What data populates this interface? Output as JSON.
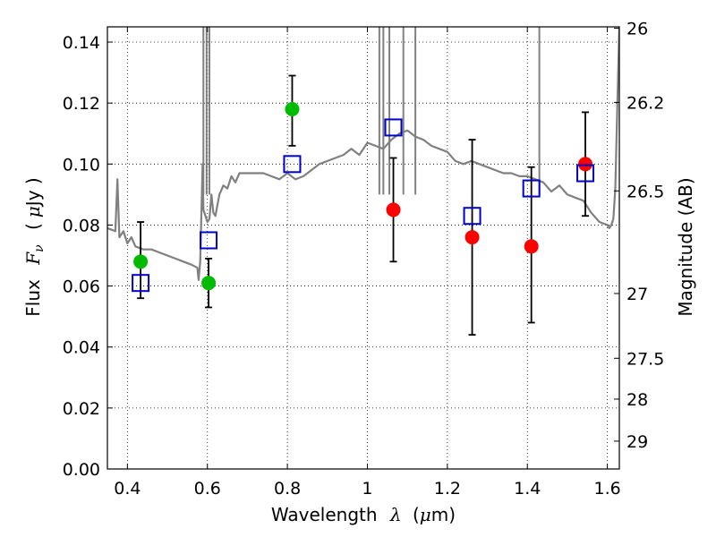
{
  "chart_data": {
    "type": "scatter",
    "xlabel_main": "Wavelength",
    "xlabel_symbol": "λ",
    "xlabel_unit_open": "(",
    "xlabel_unit_mu": "μ",
    "xlabel_unit_rest": "m)",
    "ylabel_main": "Flux",
    "ylabel_symbol": "F",
    "ylabel_sub": "ν",
    "ylabel_unit_open": "(",
    "ylabel_unit_mu": "μ",
    "ylabel_unit_rest": "Jy )",
    "y2label": "Magnitude (AB)",
    "xlim": [
      0.35,
      1.63
    ],
    "ylim": [
      0.0,
      0.145
    ],
    "xticks": [
      0.4,
      0.6,
      0.8,
      1.0,
      1.2,
      1.4,
      1.6
    ],
    "xtick_labels": [
      "0.4",
      "0.6",
      "0.8",
      "1",
      "1.2",
      "1.4",
      "1.6"
    ],
    "yticks": [
      0.0,
      0.02,
      0.04,
      0.06,
      0.08,
      0.1,
      0.12,
      0.14
    ],
    "ytick_labels": [
      "0.00",
      "0.02",
      "0.04",
      "0.06",
      "0.08",
      "0.10",
      "0.12",
      "0.14"
    ],
    "mag_ticks": [
      26,
      26.2,
      26.5,
      27,
      27.5,
      28,
      29
    ],
    "mag_tick_labels": [
      "26",
      "26.2",
      "26.5",
      "27",
      "27.5",
      "28",
      "29"
    ],
    "grid": true,
    "colors": {
      "model": "#808080",
      "detected": "#00bb00",
      "measured": "#ff0000",
      "model_band": "#0000cc",
      "errorbar": "#000000"
    },
    "series": [
      {
        "kind": "line",
        "color": "#808080",
        "x": [
          0.35,
          0.37,
          0.375,
          0.38,
          0.39,
          0.4,
          0.41,
          0.42,
          0.44,
          0.46,
          0.48,
          0.5,
          0.52,
          0.54,
          0.56,
          0.575,
          0.578,
          0.582,
          0.588,
          0.59,
          0.6,
          0.605,
          0.61,
          0.615,
          0.62,
          0.63,
          0.64,
          0.65,
          0.66,
          0.67,
          0.68,
          0.7,
          0.72,
          0.74,
          0.76,
          0.78,
          0.8,
          0.82,
          0.84,
          0.86,
          0.88,
          0.9,
          0.92,
          0.94,
          0.96,
          0.98,
          1.0,
          1.02,
          1.04,
          1.06,
          1.08,
          1.1,
          1.12,
          1.14,
          1.16,
          1.18,
          1.2,
          1.22,
          1.24,
          1.26,
          1.28,
          1.3,
          1.32,
          1.34,
          1.36,
          1.38,
          1.4,
          1.42,
          1.44,
          1.46,
          1.48,
          1.5,
          1.52,
          1.54,
          1.56,
          1.58,
          1.6,
          1.605,
          1.61,
          1.615,
          1.62,
          1.625,
          1.63
        ],
        "y": [
          0.079,
          0.078,
          0.095,
          0.076,
          0.078,
          0.074,
          0.076,
          0.073,
          0.072,
          0.072,
          0.071,
          0.07,
          0.069,
          0.068,
          0.067,
          0.066,
          0.062,
          0.068,
          0.1,
          0.085,
          0.081,
          0.082,
          0.09,
          0.084,
          0.083,
          0.09,
          0.093,
          0.092,
          0.096,
          0.094,
          0.097,
          0.097,
          0.097,
          0.097,
          0.096,
          0.095,
          0.097,
          0.095,
          0.096,
          0.098,
          0.1,
          0.101,
          0.102,
          0.103,
          0.105,
          0.103,
          0.107,
          0.106,
          0.105,
          0.108,
          0.11,
          0.111,
          0.109,
          0.108,
          0.106,
          0.105,
          0.104,
          0.101,
          0.1,
          0.101,
          0.1,
          0.099,
          0.098,
          0.097,
          0.097,
          0.096,
          0.096,
          0.095,
          0.094,
          0.091,
          0.093,
          0.09,
          0.089,
          0.088,
          0.084,
          0.081,
          0.08,
          0.079,
          0.08,
          0.082,
          0.092,
          0.12,
          0.145
        ]
      },
      {
        "kind": "points",
        "marker": "circle",
        "color": "#00bb00",
        "x": [
          0.433,
          0.603,
          0.812
        ],
        "y": [
          0.068,
          0.061,
          0.118
        ]
      },
      {
        "kind": "points",
        "marker": "circle",
        "color": "#ff0000",
        "x": [
          1.065,
          1.262,
          1.41,
          1.545
        ],
        "y": [
          0.085,
          0.076,
          0.073,
          0.1
        ]
      },
      {
        "kind": "points",
        "marker": "square",
        "color": "#0000cc",
        "x": [
          0.433,
          0.603,
          0.812,
          1.065,
          1.262,
          1.41,
          1.545
        ],
        "y": [
          0.061,
          0.075,
          0.1,
          0.112,
          0.083,
          0.092,
          0.097
        ]
      }
    ],
    "errorbars": [
      {
        "x": 0.433,
        "ylow": 0.056,
        "yhigh": 0.081
      },
      {
        "x": 0.603,
        "ylow": 0.053,
        "yhigh": 0.069
      },
      {
        "x": 0.812,
        "ylow": 0.106,
        "yhigh": 0.129
      },
      {
        "x": 1.065,
        "ylow": 0.068,
        "yhigh": 0.102
      },
      {
        "x": 1.262,
        "ylow": 0.044,
        "yhigh": 0.108
      },
      {
        "x": 1.41,
        "ylow": 0.048,
        "yhigh": 0.099
      },
      {
        "x": 1.545,
        "ylow": 0.083,
        "yhigh": 0.117
      }
    ]
  }
}
